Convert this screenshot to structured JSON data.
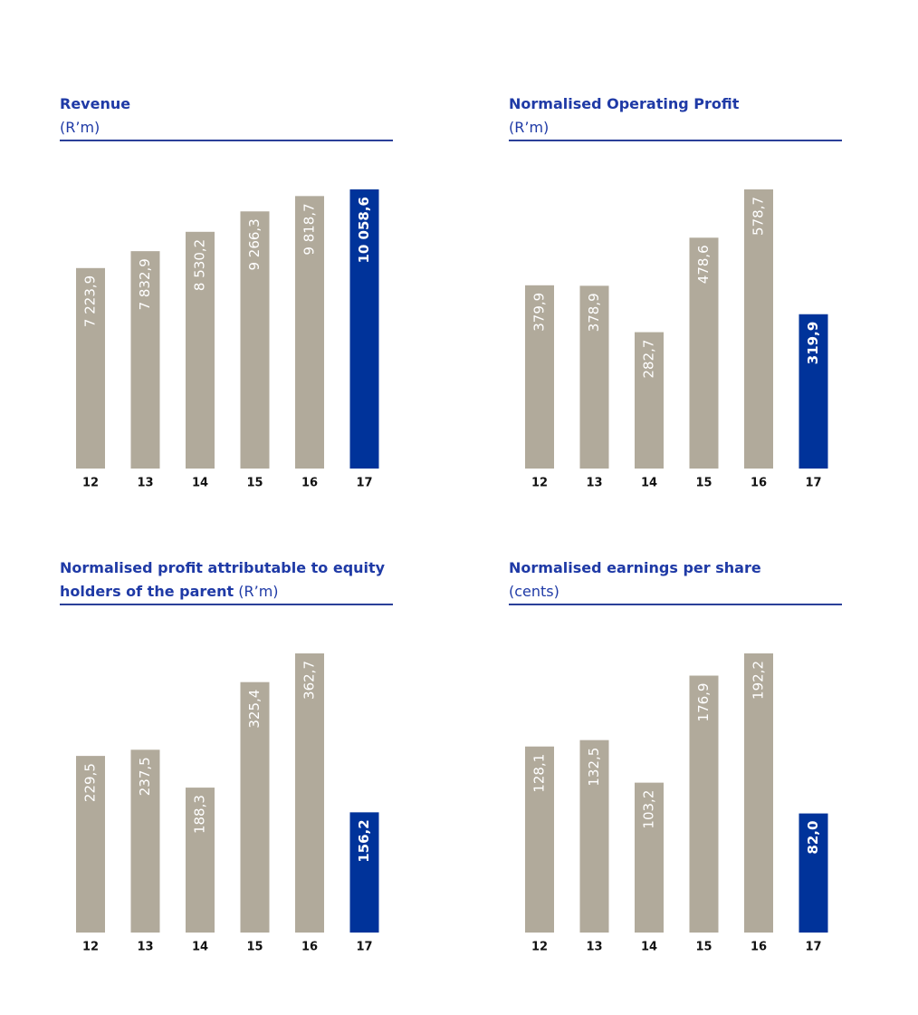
{
  "chart_data": [
    {
      "type": "bar",
      "title": "Revenue",
      "subtitle": "(R’m)",
      "categories": [
        "12",
        "13",
        "14",
        "15",
        "16",
        "17"
      ],
      "values": [
        7223.9,
        7832.9,
        8530.2,
        9266.3,
        9818.7,
        10058.6
      ],
      "value_labels": [
        "7 223,9",
        "7 832,9",
        "8 530,2",
        "9 266,3",
        "9 818,7",
        "10 058,6"
      ],
      "colors": [
        "#b1aa9b",
        "#b1aa9b",
        "#b1aa9b",
        "#b1aa9b",
        "#b1aa9b",
        "#00339a"
      ]
    },
    {
      "type": "bar",
      "title": "Normalised Operating Profit",
      "subtitle": "(R’m)",
      "categories": [
        "12",
        "13",
        "14",
        "15",
        "16",
        "17"
      ],
      "values": [
        379.9,
        378.9,
        282.7,
        478.6,
        578.7,
        319.9
      ],
      "value_labels": [
        "379,9",
        "378,9",
        "282,7",
        "478,6",
        "578,7",
        "319,9"
      ],
      "colors": [
        "#b1aa9b",
        "#b1aa9b",
        "#b1aa9b",
        "#b1aa9b",
        "#b1aa9b",
        "#00339a"
      ]
    },
    {
      "type": "bar",
      "title": "Normalised profit attributable to equity holders of the parent",
      "subtitle": "(R’m)",
      "categories": [
        "12",
        "13",
        "14",
        "15",
        "16",
        "17"
      ],
      "values": [
        229.5,
        237.5,
        188.3,
        325.4,
        362.7,
        156.2
      ],
      "value_labels": [
        "229,5",
        "237,5",
        "188,3",
        "325,4",
        "362,7",
        "156,2"
      ],
      "colors": [
        "#b1aa9b",
        "#b1aa9b",
        "#b1aa9b",
        "#b1aa9b",
        "#b1aa9b",
        "#00339a"
      ]
    },
    {
      "type": "bar",
      "title": "Normalised earnings per share",
      "subtitle": "(cents)",
      "categories": [
        "12",
        "13",
        "14",
        "15",
        "16",
        "17"
      ],
      "values": [
        128.1,
        132.5,
        103.2,
        176.9,
        192.2,
        82.0
      ],
      "value_labels": [
        "128,1",
        "132,5",
        "103,2",
        "176,9",
        "192,2",
        "82,0"
      ],
      "colors": [
        "#b1aa9b",
        "#b1aa9b",
        "#b1aa9b",
        "#b1aa9b",
        "#b1aa9b",
        "#00339a"
      ]
    }
  ]
}
